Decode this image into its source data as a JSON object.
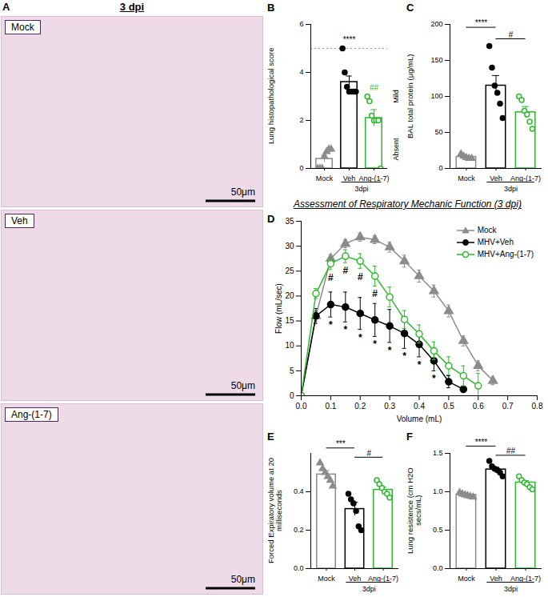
{
  "title": "3 dpi",
  "images": {
    "panel": "A",
    "items": [
      {
        "label": "Mock",
        "scale_bar": "50μm"
      },
      {
        "label": "Veh",
        "scale_bar": "50μm"
      },
      {
        "label": "Ang-(1-7)",
        "scale_bar": "50μm"
      }
    ]
  },
  "chart_data": [
    {
      "type": "bar",
      "panel": "B",
      "ylabel": "Lung histopathological score",
      "groups": [
        {
          "category": "Mock",
          "value": 0.4,
          "error": 0.15,
          "color": "#8c8c8c",
          "marker": "triangle",
          "points": [
            0,
            0,
            0,
            0.5,
            0.7,
            0.8,
            0.8
          ]
        },
        {
          "category": "Veh",
          "value": 3.6,
          "error": 0.25,
          "color": "#000000",
          "marker": "circle",
          "points": [
            5,
            4,
            3.4,
            3.2,
            3.2,
            3.2,
            3.2
          ]
        },
        {
          "category": "Ang-(1-7)",
          "value": 2.1,
          "error": 0.35,
          "color": "#2eb82e",
          "marker": "open-circle",
          "points": [
            3,
            2.8,
            2.2,
            2,
            2,
            2,
            0
          ]
        }
      ],
      "group_label": "3dpi",
      "ylim": [
        0,
        6
      ],
      "yticks": [
        0,
        2,
        4,
        6
      ],
      "reference_line": 5,
      "side_labels": [
        {
          "text": "Mild",
          "y": 3
        },
        {
          "text": "Absent",
          "y": 0.8
        }
      ],
      "annotations": [
        {
          "text": "****",
          "at": "Veh"
        },
        {
          "text": "##",
          "at": "Ang-(1-7)"
        }
      ]
    },
    {
      "type": "bar",
      "panel": "C",
      "ylabel": "BAL total protein (μg/mL)",
      "groups": [
        {
          "category": "Mock",
          "value": 16,
          "error": 1.5,
          "color": "#8c8c8c",
          "marker": "triangle",
          "points": [
            20,
            17,
            15,
            14,
            14
          ]
        },
        {
          "category": "Veh",
          "value": 115,
          "error": 14,
          "color": "#000000",
          "marker": "circle",
          "points": [
            170,
            140,
            115,
            105,
            90,
            70
          ]
        },
        {
          "category": "Ang-(1-7)",
          "value": 78,
          "error": 8,
          "color": "#2eb82e",
          "marker": "open-circle",
          "points": [
            100,
            95,
            80,
            75,
            65,
            55
          ]
        }
      ],
      "group_label": "3dpi",
      "ylim": [
        0,
        200
      ],
      "yticks": [
        0,
        50,
        100,
        150,
        200
      ],
      "annotations": [
        {
          "text": "****",
          "from": "Mock",
          "to": "Veh"
        },
        {
          "text": "#",
          "from": "Veh",
          "to": "Ang-(1-7)"
        }
      ]
    },
    {
      "type": "line",
      "panel": "D",
      "title": "Assessment of Respiratory Mechanic Function (3 dpi)",
      "xlabel": "Volume (mL)",
      "ylabel": "Flow (mL/sec)",
      "x": [
        0,
        0.05,
        0.1,
        0.15,
        0.2,
        0.25,
        0.3,
        0.35,
        0.4,
        0.45,
        0.5,
        0.55,
        0.6,
        0.65
      ],
      "series": [
        {
          "name": "Mock",
          "color": "#8c8c8c",
          "marker": "triangle",
          "values": [
            0,
            16,
            27.5,
            30.5,
            31.8,
            31.3,
            29.8,
            27,
            24,
            21,
            17,
            11,
            6,
            3
          ],
          "errors": [
            0,
            1,
            0.8,
            0.8,
            0.8,
            0.8,
            1,
            1.2,
            1.2,
            1.2,
            1.2,
            1,
            1,
            0.8
          ]
        },
        {
          "name": "MHV+Veh",
          "color": "#000000",
          "marker": "circle",
          "values": [
            0,
            16,
            18.3,
            17.8,
            16.5,
            15.2,
            14,
            12.5,
            10.3,
            7,
            2.8,
            1.3,
            null,
            null
          ],
          "errors": [
            0,
            1.5,
            2.5,
            3,
            3.2,
            3.3,
            3.3,
            3,
            2.5,
            2,
            1.2,
            0.6,
            null,
            null
          ]
        },
        {
          "name": "MHV+Ang-(1-7)",
          "color": "#2eb82e",
          "marker": "open-circle",
          "values": [
            0,
            20.5,
            26.5,
            28,
            27,
            24,
            19.8,
            15.3,
            12.4,
            9,
            6,
            4,
            2,
            null
          ],
          "errors": [
            0,
            1,
            1.2,
            1.3,
            1.5,
            2,
            2,
            1.8,
            1.8,
            1.8,
            1.8,
            2,
            2.5,
            null
          ]
        }
      ],
      "xlim": [
        0,
        0.8
      ],
      "xticks": [
        {
          "value": 0,
          "label": "0.0"
        },
        0.1,
        0.2,
        0.3,
        0.4,
        0.5,
        0.6,
        0.7,
        0.8
      ],
      "ylim": [
        0,
        35
      ],
      "yticks": [
        0,
        5,
        10,
        15,
        20,
        25,
        30,
        35
      ],
      "legend": "top-right",
      "annotations": [
        {
          "series": "MHV+Veh",
          "text": "*",
          "x": [
            0.1,
            0.15,
            0.2,
            0.25,
            0.3,
            0.35,
            0.4,
            0.45
          ]
        },
        {
          "series": "MHV+Ang-(1-7)",
          "text": "#",
          "x": [
            0.1,
            0.15,
            0.2,
            0.25
          ]
        }
      ]
    },
    {
      "type": "bar",
      "panel": "E",
      "ylabel": "Forced Expiratory volume at 20 milliseconds",
      "groups": [
        {
          "category": "Mock",
          "value": 0.49,
          "error": 0.02,
          "color": "#8c8c8c",
          "marker": "triangle",
          "points": [
            0.55,
            0.52,
            0.5,
            0.48,
            0.46,
            0.43
          ]
        },
        {
          "category": "Veh",
          "value": 0.31,
          "error": 0.035,
          "color": "#000000",
          "marker": "circle",
          "points": [
            0.39,
            0.36,
            0.34,
            0.3,
            0.22,
            0.2
          ]
        },
        {
          "category": "Ang-(1-7)",
          "value": 0.41,
          "error": 0.015,
          "color": "#2eb82e",
          "marker": "open-circle",
          "points": [
            0.46,
            0.44,
            0.42,
            0.4,
            0.39,
            0.37
          ]
        }
      ],
      "group_label": "3dpi",
      "ylim": [
        0,
        0.6
      ],
      "yticks": [
        {
          "value": 0,
          "label": "0.0"
        },
        0.2,
        0.4
      ],
      "annotations": [
        {
          "text": "***",
          "from": "Mock",
          "to": "Veh"
        },
        {
          "text": "#",
          "from": "Veh",
          "to": "Ang-(1-7)"
        }
      ]
    },
    {
      "type": "bar",
      "panel": "F",
      "ylabel": "Lung resistence (cm H2O secs/mL)",
      "groups": [
        {
          "category": "Mock",
          "value": 0.96,
          "error": 0.01,
          "color": "#8c8c8c",
          "marker": "triangle",
          "points": [
            0.99,
            0.97,
            0.96,
            0.95,
            0.94,
            0.93
          ]
        },
        {
          "category": "Veh",
          "value": 1.29,
          "error": 0.03,
          "color": "#000000",
          "marker": "circle",
          "points": [
            1.4,
            1.33,
            1.3,
            1.28,
            1.25,
            1.2
          ]
        },
        {
          "category": "Ang-(1-7)",
          "value": 1.12,
          "error": 0.025,
          "color": "#2eb82e",
          "marker": "open-circle",
          "points": [
            1.2,
            1.15,
            1.12,
            1.1,
            1.06,
            1.03
          ]
        }
      ],
      "group_label": "3dpi",
      "ylim": [
        0,
        1.5
      ],
      "yticks": [
        {
          "value": 0,
          "label": "0.0"
        },
        0.5,
        {
          "value": 1,
          "label": "1.0"
        },
        1.5
      ],
      "annotations": [
        {
          "text": "****",
          "from": "Mock",
          "to": "Veh"
        },
        {
          "text": "##",
          "from": "Veh",
          "to": "Ang-(1-7)"
        }
      ]
    }
  ]
}
